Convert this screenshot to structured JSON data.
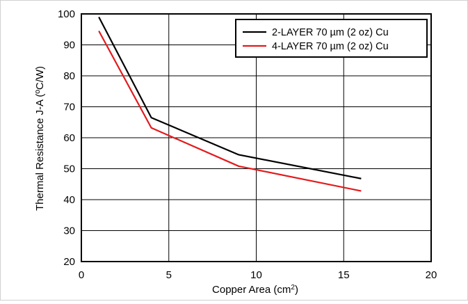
{
  "chart_data": {
    "type": "line",
    "xlabel": "Copper Area (cm",
    "xlabel_superscript": "2",
    "xlabel_suffix": ")",
    "ylabel": "Thermal Resistance J-A (ºC/W)",
    "xlim": [
      0,
      20
    ],
    "ylim": [
      20,
      100
    ],
    "xticks": [
      0,
      5,
      10,
      15,
      20
    ],
    "yticks": [
      20,
      30,
      40,
      50,
      60,
      70,
      80,
      90,
      100
    ],
    "grid": true,
    "legend_position": "top-right",
    "series": [
      {
        "name": "2-LAYER 70 µm (2 oz) Cu",
        "color": "#000000",
        "x": [
          1,
          4,
          9,
          16
        ],
        "y": [
          99,
          66.5,
          54.5,
          46.8
        ]
      },
      {
        "name": "4-LAYER 70 µm (2 oz) Cu",
        "color": "#e31a1c",
        "x": [
          1,
          4,
          9,
          16
        ],
        "y": [
          94.5,
          63.2,
          50.8,
          42.8
        ]
      }
    ]
  }
}
